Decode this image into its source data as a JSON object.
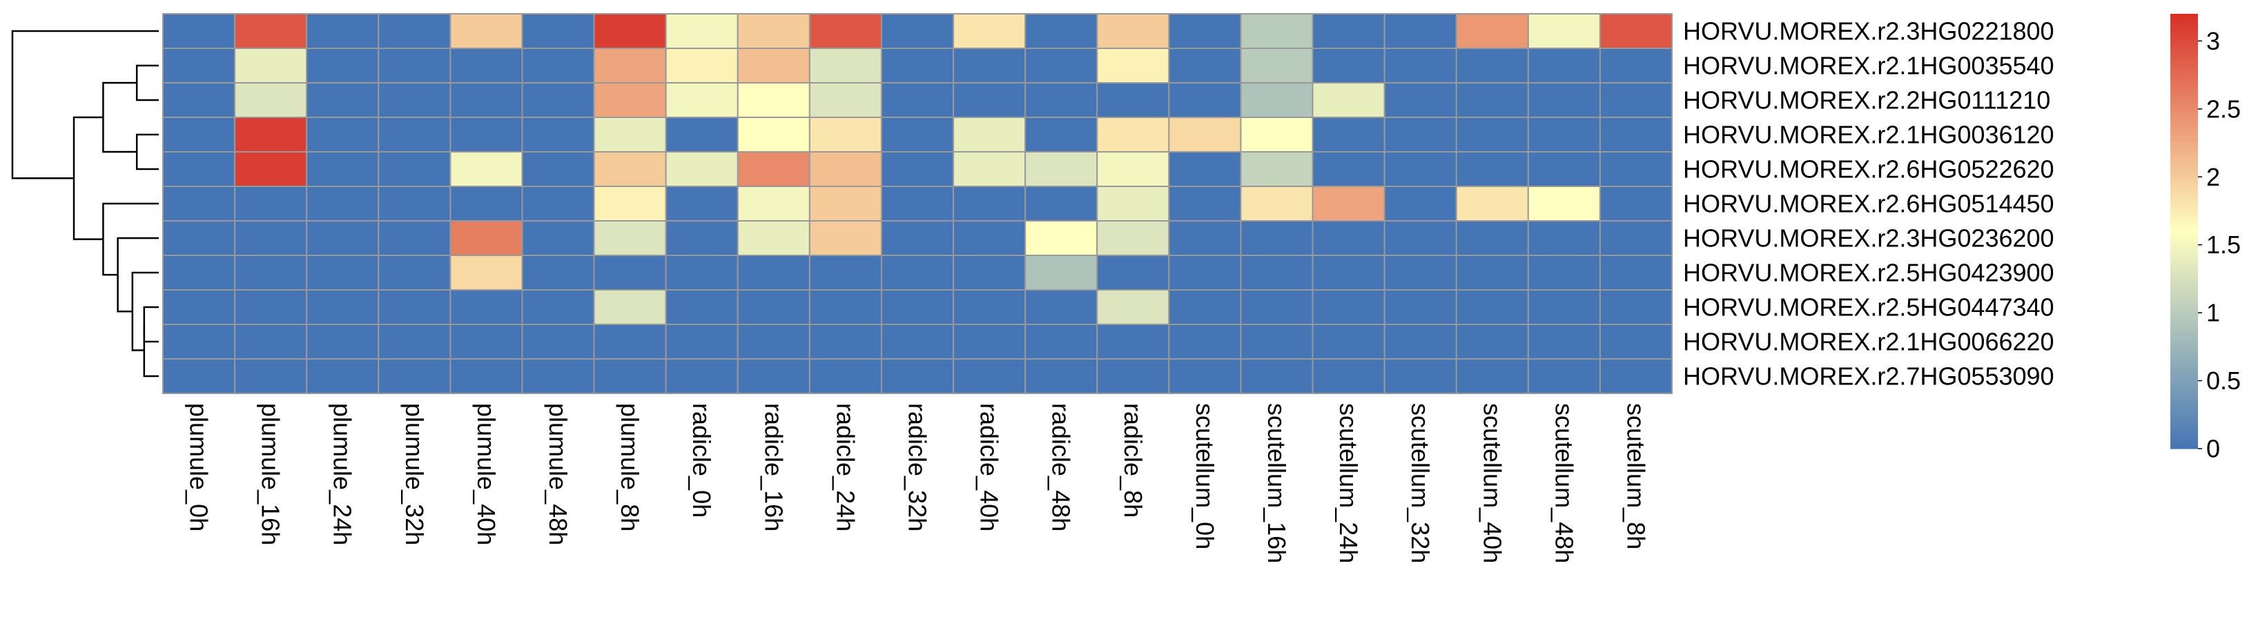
{
  "chart_data": {
    "type": "heatmap",
    "title": "",
    "columns": [
      "plumule_0h",
      "plumule_16h",
      "plumule_24h",
      "plumule_32h",
      "plumule_40h",
      "plumule_48h",
      "plumule_8h",
      "radicle_0h",
      "radicle_16h",
      "radicle_24h",
      "radicle_32h",
      "radicle_40h",
      "radicle_48h",
      "radicle_8h",
      "scutellum_0h",
      "scutellum_16h",
      "scutellum_24h",
      "scutellum_32h",
      "scutellum_40h",
      "scutellum_48h",
      "scutellum_8h"
    ],
    "rows": [
      "HORVU.MOREX.r2.3HG0221800",
      "HORVU.MOREX.r2.1HG0035540",
      "HORVU.MOREX.r2.2HG0111210",
      "HORVU.MOREX.r2.1HG0036120",
      "HORVU.MOREX.r2.6HG0522620",
      "HORVU.MOREX.r2.6HG0514450",
      "HORVU.MOREX.r2.3HG0236200",
      "HORVU.MOREX.r2.5HG0423900",
      "HORVU.MOREX.r2.5HG0447340",
      "HORVU.MOREX.r2.1HG0066220",
      "HORVU.MOREX.r2.7HG0553090"
    ],
    "values": [
      [
        0,
        2.9,
        0,
        0,
        2.0,
        0,
        3.1,
        1.5,
        2.0,
        2.9,
        0,
        1.8,
        0,
        2.0,
        0,
        1.0,
        0,
        0,
        2.4,
        1.5,
        2.9
      ],
      [
        0,
        1.4,
        0,
        0,
        0,
        0,
        2.3,
        1.7,
        2.1,
        1.3,
        0,
        0,
        0,
        1.7,
        0,
        1.0,
        0,
        0,
        0,
        0,
        0
      ],
      [
        0,
        1.3,
        0,
        0,
        0,
        0,
        2.3,
        1.5,
        1.6,
        1.3,
        0,
        0,
        0,
        0,
        0,
        0.9,
        1.4,
        0,
        0,
        0,
        0
      ],
      [
        0,
        3.1,
        0,
        0,
        0,
        0,
        1.4,
        0,
        1.6,
        1.8,
        0,
        1.4,
        0,
        1.8,
        1.9,
        1.6,
        0,
        0,
        0,
        0,
        0
      ],
      [
        0,
        3.1,
        0,
        0,
        1.5,
        0,
        2.0,
        1.4,
        2.5,
        2.1,
        0,
        1.4,
        1.3,
        1.5,
        0,
        1.1,
        0,
        0,
        0,
        0,
        0
      ],
      [
        0,
        0,
        0,
        0,
        0,
        0,
        1.7,
        0,
        1.5,
        2.0,
        0,
        0,
        0,
        1.4,
        0,
        1.8,
        2.3,
        0,
        1.8,
        1.6,
        0
      ],
      [
        0,
        0,
        0,
        0,
        2.6,
        0,
        1.3,
        0,
        1.4,
        2.0,
        0,
        0,
        1.6,
        1.3,
        0,
        0,
        0,
        0,
        0,
        0,
        0
      ],
      [
        0,
        0,
        0,
        0,
        1.9,
        0,
        0,
        0,
        0,
        0,
        0,
        0,
        0.9,
        0,
        0,
        0,
        0,
        0,
        0,
        0,
        0
      ],
      [
        0,
        0,
        0,
        0,
        0,
        0,
        1.3,
        0,
        0,
        0,
        0,
        0,
        0,
        1.3,
        0,
        0,
        0,
        0,
        0,
        0,
        0
      ],
      [
        0,
        0,
        0,
        0,
        0,
        0,
        0,
        0,
        0,
        0,
        0,
        0,
        0,
        0,
        0,
        0,
        0,
        0,
        0,
        0,
        0
      ],
      [
        0,
        0,
        0,
        0,
        0,
        0,
        0,
        0,
        0,
        0,
        0,
        0,
        0,
        0,
        0,
        0,
        0,
        0,
        0,
        0,
        0
      ]
    ],
    "color_scale": {
      "min": 0,
      "max": 3.2,
      "low": "#4575b4",
      "mid": "#ffffbf",
      "high": "#d73027"
    },
    "legend": {
      "position": "right",
      "ticks": [
        {
          "value": 0,
          "label": "0"
        },
        {
          "value": 0.5,
          "label": "0.5"
        },
        {
          "value": 1,
          "label": "1"
        },
        {
          "value": 1.5,
          "label": "1.5"
        },
        {
          "value": 2,
          "label": "2"
        },
        {
          "value": 2.5,
          "label": "2.5"
        },
        {
          "value": 3,
          "label": "3"
        }
      ]
    },
    "row_dendrogram": {
      "position": "left",
      "merges": [
        [
          1,
          2,
          0.15
        ],
        [
          3,
          4,
          0.15
        ],
        [
          -1,
          -2,
          0.38
        ],
        [
          8,
          9,
          0.1
        ],
        [
          -4,
          10,
          0.1
        ],
        [
          -5,
          7,
          0.18
        ],
        [
          6,
          -6,
          0.28
        ],
        [
          5,
          -7,
          0.38
        ],
        [
          -3,
          -8,
          0.58
        ],
        [
          0,
          -9,
          1.0
        ]
      ]
    },
    "grid": true,
    "cell_border_color": "#999999"
  }
}
